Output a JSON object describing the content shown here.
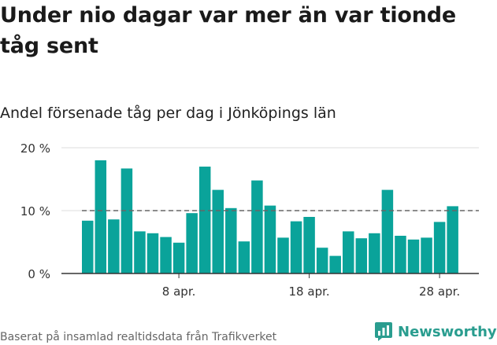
{
  "header": {
    "title": "Under nio dagar var mer än var tionde tåg sent",
    "subtitle": "Andel försenade tåg per dag i Jönköpings län"
  },
  "footer": {
    "source": "Baserat på insamlad realtidsdata från Trafikverket",
    "brand": "Newsworthy"
  },
  "colors": {
    "bar": "#0aa39a",
    "grid": "#dddddd",
    "reference_line": "#666666",
    "brand": "#2a9d8f"
  },
  "chart_data": {
    "type": "bar",
    "title": "Andel försenade tåg per dag i Jönköpings län",
    "xlabel": "",
    "ylabel": "",
    "x": [
      "1 apr.",
      "2 apr.",
      "3 apr.",
      "4 apr.",
      "5 apr.",
      "6 apr.",
      "7 apr.",
      "8 apr.",
      "9 apr.",
      "10 apr.",
      "11 apr.",
      "12 apr.",
      "13 apr.",
      "14 apr.",
      "15 apr.",
      "16 apr.",
      "17 apr.",
      "18 apr.",
      "19 apr.",
      "20 apr.",
      "21 apr.",
      "22 apr.",
      "23 apr.",
      "24 apr.",
      "25 apr.",
      "26 apr.",
      "27 apr.",
      "28 apr.",
      "29 apr."
    ],
    "values": [
      8.4,
      18.0,
      8.6,
      16.7,
      6.7,
      6.4,
      5.8,
      4.9,
      9.6,
      17.0,
      13.3,
      10.4,
      5.1,
      14.8,
      10.8,
      5.7,
      8.3,
      9.0,
      4.1,
      2.8,
      6.7,
      5.6,
      6.4,
      13.3,
      6.0,
      5.4,
      5.7,
      8.2,
      10.7
    ],
    "ylim": [
      0,
      20
    ],
    "yticks": [
      0,
      10,
      20
    ],
    "ytick_labels": [
      "0 %",
      "10 %",
      "20 %"
    ],
    "xticks": [
      {
        "index": 7,
        "label": "8 apr."
      },
      {
        "index": 17,
        "label": "18 apr."
      },
      {
        "index": 27,
        "label": "28 apr."
      }
    ],
    "reference_line": {
      "value": 10,
      "style": "dashed"
    },
    "grid": true
  }
}
